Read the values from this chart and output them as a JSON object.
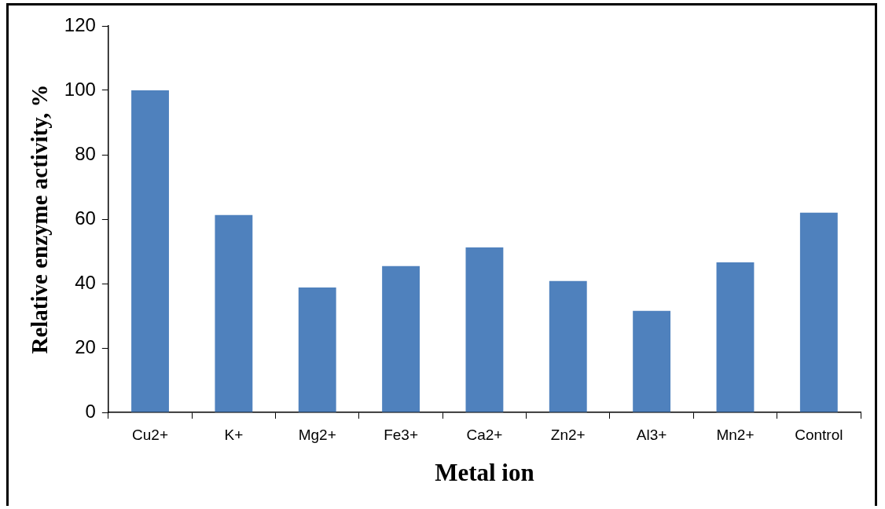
{
  "chart_data": {
    "type": "bar",
    "xlabel": "Metal ion",
    "ylabel": "Relative enzyme activity, %",
    "categories": [
      "Cu2+",
      "K+",
      "Mg2+",
      "Fe3+",
      "Ca2+",
      "Zn2+",
      "Al3+",
      "Mn2+",
      "Control"
    ],
    "values": [
      100,
      61.3,
      38.8,
      45.4,
      51.2,
      40.8,
      31.5,
      46.6,
      62
    ],
    "color": "#4f81bd",
    "ylim": [
      0,
      120
    ],
    "yticks": [
      0,
      20,
      40,
      60,
      80,
      100,
      120
    ],
    "grid": false,
    "legend": false
  }
}
